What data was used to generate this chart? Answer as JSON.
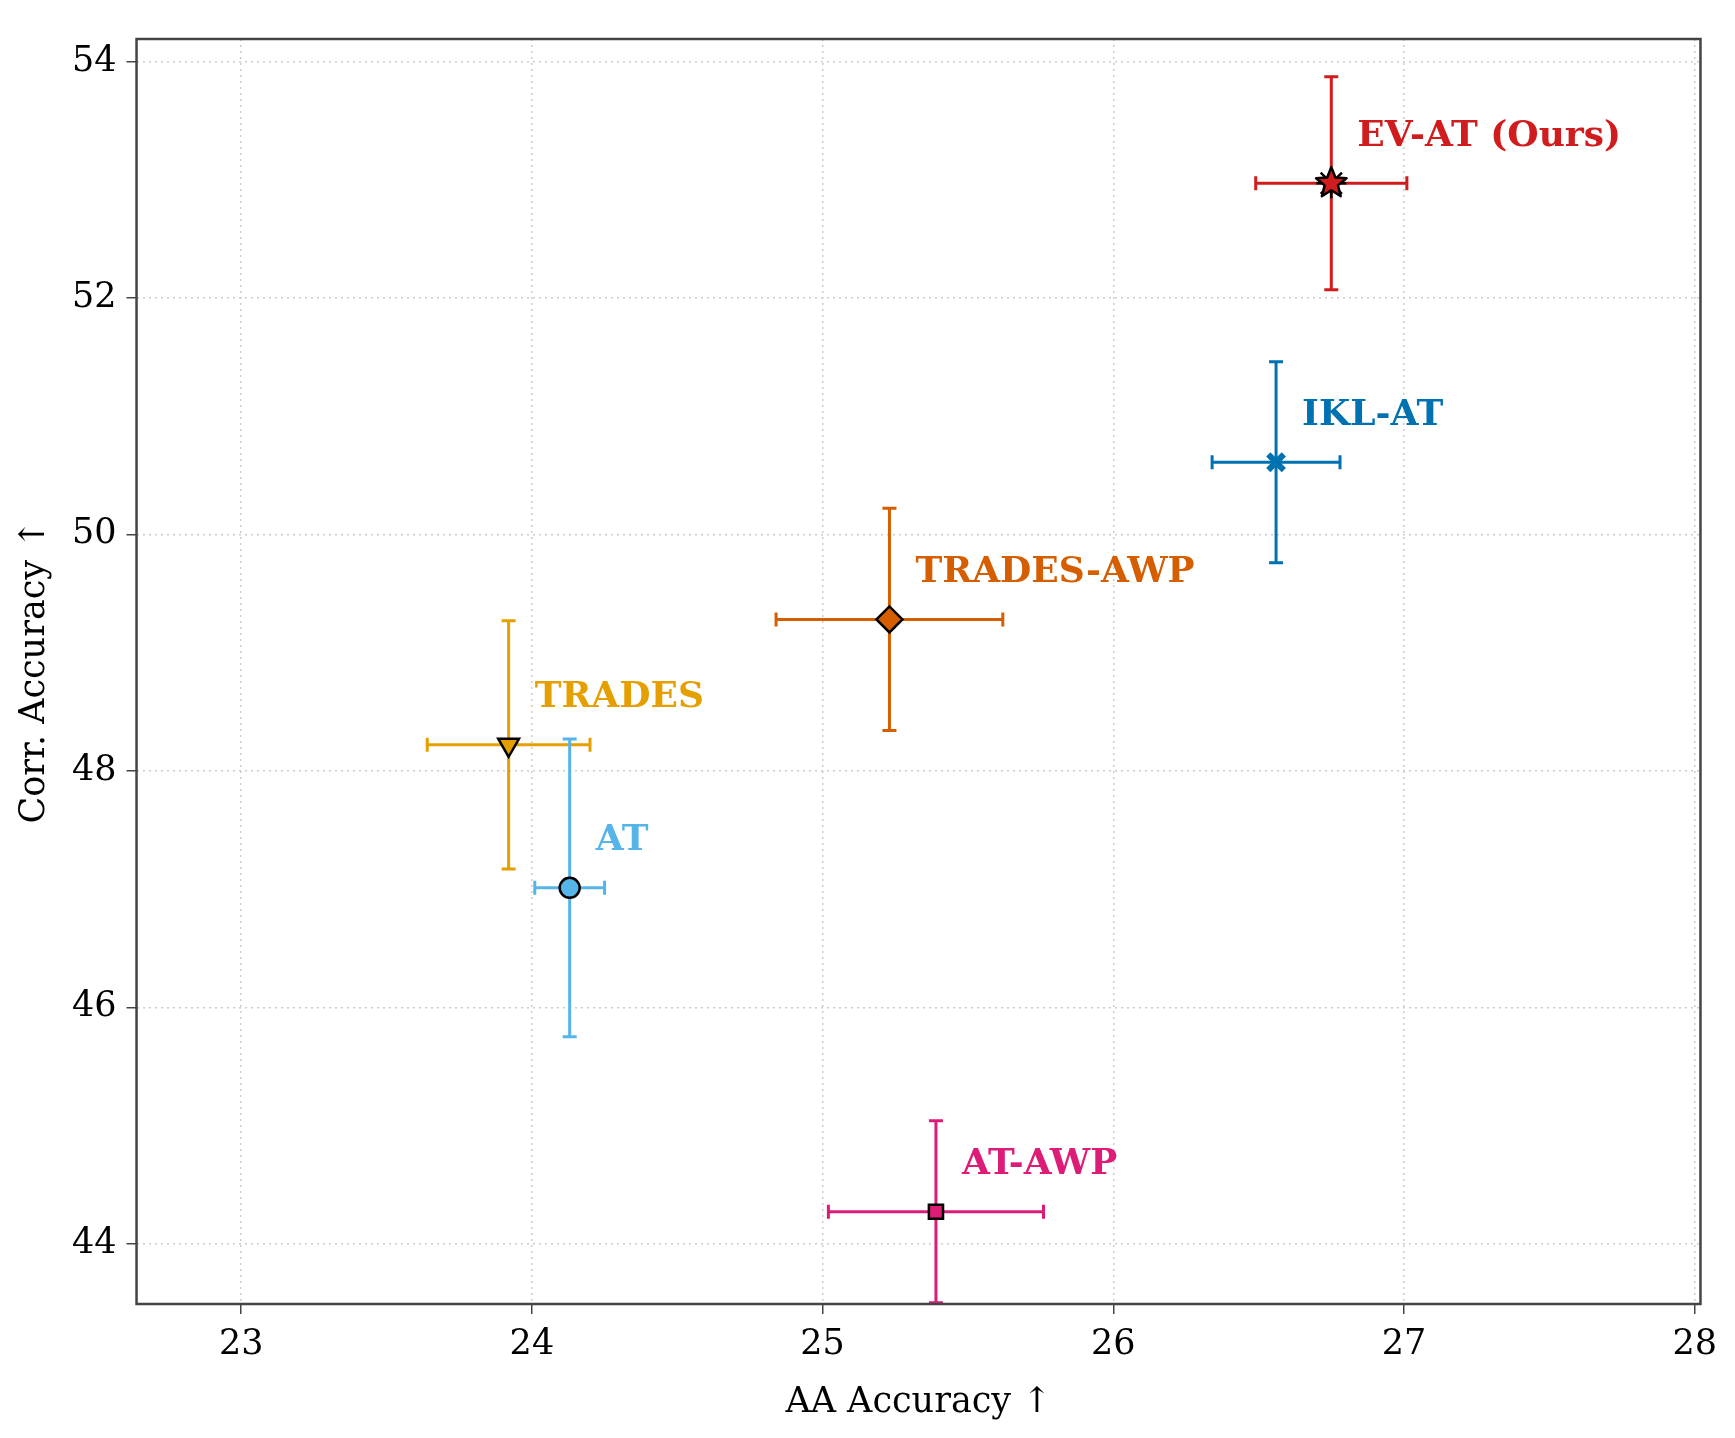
{
  "chart_data": {
    "type": "scatter",
    "xlabel": "AA Accuracy ↑",
    "ylabel": "Corr. Accuracy ↑",
    "xlim": [
      22.64,
      28.02
    ],
    "ylim": [
      43.49,
      54.19
    ],
    "xticks": [
      23,
      24,
      25,
      26,
      27,
      28
    ],
    "yticks": [
      44,
      46,
      48,
      50,
      52,
      54
    ],
    "grid": true,
    "legend": false,
    "line_style": "dotted",
    "series": [
      {
        "name": "EV-AT (Ours)",
        "color": "#d01c1c",
        "marker": "star",
        "x": [
          26.75
        ],
        "values": [
          52.97
        ],
        "errors": [
          0.9
        ],
        "xerrors": [
          0.26
        ]
      },
      {
        "name": "IKL-AT",
        "color": "#0072b2",
        "marker": "cross",
        "x": [
          26.56
        ],
        "values": [
          50.61
        ],
        "errors": [
          0.85
        ],
        "xerrors": [
          0.22
        ]
      },
      {
        "name": "TRADES-AWP",
        "color": "#d55e00",
        "marker": "diamond",
        "x": [
          25.23
        ],
        "values": [
          49.28
        ],
        "errors": [
          0.94
        ],
        "xerrors": [
          0.39
        ]
      },
      {
        "name": "TRADES",
        "color": "#e69f00",
        "marker": "triangle",
        "x": [
          23.92
        ],
        "values": [
          48.22
        ],
        "errors": [
          1.05
        ],
        "xerrors": [
          0.28
        ]
      },
      {
        "name": "AT",
        "color": "#56b4e9",
        "marker": "circle",
        "x": [
          24.13
        ],
        "values": [
          47.01
        ],
        "errors": [
          1.26
        ],
        "xerrors": [
          0.12
        ]
      },
      {
        "name": "AT-AWP",
        "color": "#dd1c77",
        "marker": "square",
        "x": [
          25.39
        ],
        "values": [
          44.27
        ],
        "errors": [
          0.77
        ],
        "xerrors": [
          0.37
        ]
      }
    ]
  }
}
